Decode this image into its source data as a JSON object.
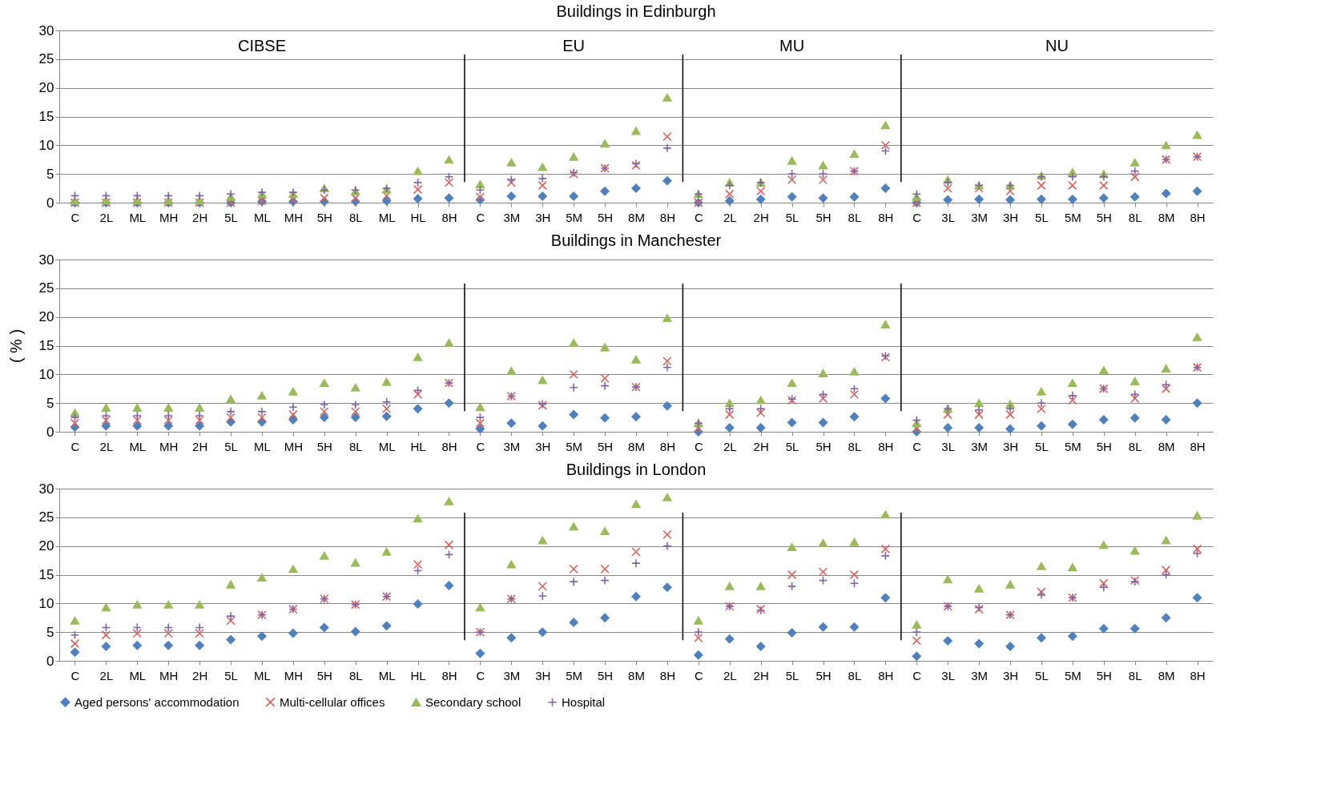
{
  "chart_data": [
    {
      "type": "scatter",
      "title": "Buildings in Edinburgh",
      "categories": [
        "C",
        "2L",
        "ML",
        "MH",
        "2H",
        "5L",
        "ML",
        "MH",
        "5H",
        "8L",
        "ML",
        "HL",
        "8H",
        "C",
        "3M",
        "3H",
        "5M",
        "5H",
        "8M",
        "8H",
        "C",
        "2L",
        "2H",
        "5L",
        "5H",
        "8L",
        "8H",
        "C",
        "3L",
        "3M",
        "3H",
        "5L",
        "5M",
        "5H",
        "8L",
        "8M",
        "8H"
      ],
      "ylim": [
        0,
        30
      ],
      "yticks": [
        0,
        5,
        10,
        15,
        20,
        25,
        30
      ],
      "grid": "y",
      "legend": "bottom",
      "annotations": [
        "CIBSE",
        "EU",
        "MU",
        "NU"
      ],
      "series": [
        {
          "name": "Aged persons' accommodation",
          "color": "#4f81bd",
          "marker": "diamond",
          "values": [
            0,
            0,
            0,
            0,
            0,
            0,
            0.2,
            0.2,
            0.2,
            0.2,
            0.3,
            0.7,
            0.8,
            0.5,
            1.1,
            1.1,
            1.1,
            2,
            2.5,
            3.8,
            0,
            0.3,
            0.6,
            1,
            0.8,
            1,
            2.5,
            0,
            0.5,
            0.6,
            0.5,
            0.6,
            0.6,
            0.8,
            1,
            1.6,
            2
          ]
        },
        {
          "name": "Multi-cellular offices",
          "color": "#d9605c",
          "marker": "cross",
          "values": [
            0,
            0,
            0,
            0,
            0,
            0,
            0.3,
            0.5,
            0.8,
            0.8,
            1.2,
            2.3,
            3.5,
            1,
            3.5,
            3,
            5,
            6,
            6.5,
            11.5,
            0,
            1.5,
            2,
            4,
            4,
            5.5,
            10,
            0,
            2.5,
            2.5,
            2,
            3,
            3,
            3,
            4.5,
            7.5,
            8
          ]
        },
        {
          "name": "Secondary school",
          "color": "#9bbb59",
          "marker": "triangle",
          "values": [
            0.3,
            0.4,
            0.4,
            0.4,
            0.4,
            1,
            1.5,
            1.5,
            2.5,
            2,
            2.3,
            5.5,
            7.5,
            3.2,
            7,
            6.2,
            8,
            10.3,
            12.5,
            18.3,
            1.5,
            3.5,
            3.5,
            7.3,
            6.5,
            8.5,
            13.5,
            1,
            4,
            3,
            3,
            4.7,
            5.3,
            5,
            7,
            10,
            11.8
          ]
        },
        {
          "name": "Hospital",
          "color": "#8064a2",
          "marker": "plus",
          "values": [
            1.2,
            1.2,
            1.2,
            1.2,
            1.2,
            1.5,
            1.8,
            1.8,
            2.2,
            2.2,
            2.5,
            3.5,
            4.5,
            2.2,
            4,
            4.2,
            5.2,
            6,
            6.8,
            9.5,
            1.5,
            3,
            3.5,
            5,
            5,
            5.5,
            9,
            1.5,
            3.5,
            3,
            3,
            4.5,
            4.5,
            4.5,
            5.5,
            7.5,
            8
          ]
        }
      ]
    },
    {
      "type": "scatter",
      "title": "Buildings in Manchester",
      "ylabel": "( % )",
      "categories": [
        "C",
        "2L",
        "ML",
        "MH",
        "2H",
        "5L",
        "ML",
        "MH",
        "5H",
        "8L",
        "ML",
        "HL",
        "8H",
        "C",
        "3M",
        "3H",
        "5M",
        "5H",
        "8M",
        "8H",
        "C",
        "2L",
        "2H",
        "5L",
        "5H",
        "8L",
        "8H",
        "C",
        "3L",
        "3M",
        "3H",
        "5L",
        "5M",
        "5H",
        "8L",
        "8M",
        "8H"
      ],
      "ylim": [
        0,
        30
      ],
      "yticks": [
        0,
        5,
        10,
        15,
        20,
        25,
        30
      ],
      "grid": "y",
      "legend": "bottom",
      "series": [
        {
          "name": "Aged persons' accommodation",
          "color": "#4f81bd",
          "marker": "diamond",
          "values": [
            0.8,
            1,
            1,
            1,
            1,
            1.7,
            1.7,
            2.1,
            2.5,
            2.5,
            2.7,
            4,
            5,
            0.5,
            1.5,
            1,
            3,
            2.4,
            2.6,
            4.5,
            0,
            0.7,
            0.7,
            1.6,
            1.6,
            2.6,
            5.8,
            0,
            0.7,
            0.7,
            0.5,
            1,
            1.3,
            2.1,
            2.4,
            2.1,
            5
          ]
        },
        {
          "name": "Multi-cellular offices",
          "color": "#d9605c",
          "marker": "cross",
          "values": [
            1.5,
            2,
            2,
            2,
            2,
            2.5,
            2.5,
            3,
            3.5,
            3.5,
            4,
            6.5,
            8.5,
            1.5,
            6.2,
            4.6,
            10,
            9.3,
            7.8,
            12.3,
            0.5,
            3,
            3.3,
            5.5,
            5.8,
            6.5,
            13,
            0.5,
            3,
            3,
            3,
            4,
            5.5,
            7.5,
            5.8,
            7.5,
            11.2
          ]
        },
        {
          "name": "Secondary school",
          "color": "#9bbb59",
          "marker": "triangle",
          "values": [
            3.3,
            4.2,
            4.2,
            4.2,
            4.2,
            5.7,
            6.3,
            7,
            8.5,
            7.7,
            8.7,
            13,
            15.5,
            4.3,
            10.6,
            9,
            15.5,
            14.7,
            12.6,
            19.8,
            1.5,
            5,
            5.5,
            8.5,
            10.2,
            10.5,
            18.7,
            1.5,
            4,
            5,
            4.8,
            7,
            8.5,
            10.7,
            8.8,
            11,
            16.5
          ]
        },
        {
          "name": "Hospital",
          "color": "#8064a2",
          "marker": "plus",
          "values": [
            2.5,
            2.8,
            2.8,
            2.8,
            2.8,
            3.5,
            3.5,
            4.3,
            4.7,
            4.7,
            5.2,
            7.2,
            8.5,
            2.5,
            6.2,
            4.8,
            7.7,
            8,
            7.8,
            11.2,
            1.5,
            4,
            4,
            5.7,
            6.5,
            7.5,
            13.2,
            2,
            4,
            3.8,
            4,
            5,
            6.3,
            7.5,
            6.5,
            8.2,
            11.2
          ]
        }
      ]
    },
    {
      "type": "scatter",
      "title": "Buildings in London",
      "categories": [
        "C",
        "2L",
        "ML",
        "MH",
        "2H",
        "5L",
        "ML",
        "MH",
        "5H",
        "8L",
        "ML",
        "HL",
        "8H",
        "C",
        "3M",
        "3H",
        "5M",
        "5H",
        "8M",
        "8H",
        "C",
        "2L",
        "2H",
        "5L",
        "5H",
        "8L",
        "8H",
        "C",
        "3L",
        "3M",
        "3H",
        "5L",
        "5M",
        "5H",
        "8L",
        "8M",
        "8H"
      ],
      "ylim": [
        0,
        30
      ],
      "yticks": [
        0,
        5,
        10,
        15,
        20,
        25,
        30
      ],
      "grid": "y",
      "legend": "bottom",
      "series": [
        {
          "name": "Aged persons' accommodation",
          "color": "#4f81bd",
          "marker": "diamond",
          "values": [
            1.5,
            2.5,
            2.7,
            2.7,
            2.7,
            3.7,
            4.3,
            4.8,
            5.8,
            5.1,
            6.1,
            9.9,
            13.1,
            1.3,
            4,
            5,
            6.7,
            7.5,
            11.2,
            12.8,
            1,
            3.8,
            2.5,
            4.9,
            5.9,
            5.9,
            11,
            0.8,
            3.5,
            3,
            2.5,
            4,
            4.3,
            5.6,
            5.6,
            7.5,
            11
          ]
        },
        {
          "name": "Multi-cellular offices",
          "color": "#d9605c",
          "marker": "cross",
          "values": [
            3,
            4.5,
            4.8,
            4.8,
            4.8,
            7,
            8,
            9,
            10.8,
            9.8,
            11.2,
            16.8,
            20.2,
            5,
            10.8,
            13,
            16,
            16,
            19,
            22,
            4,
            9.5,
            9,
            15,
            15.5,
            15,
            19.5,
            3.5,
            9.5,
            9,
            8,
            12,
            11,
            13.5,
            14,
            15.8,
            19.5
          ]
        },
        {
          "name": "Secondary school",
          "color": "#9bbb59",
          "marker": "triangle",
          "values": [
            7,
            9.3,
            9.8,
            9.8,
            9.8,
            13.3,
            14.5,
            16,
            18.3,
            17.1,
            19,
            24.8,
            27.8,
            9.3,
            16.8,
            21,
            23.4,
            22.6,
            27.3,
            28.5,
            7,
            13,
            13,
            19.8,
            20.5,
            20.7,
            25.5,
            6.3,
            14.2,
            12.6,
            13.3,
            16.5,
            16.3,
            20.2,
            19.2,
            21,
            25.3
          ]
        },
        {
          "name": "Hospital",
          "color": "#8064a2",
          "marker": "plus",
          "values": [
            4.5,
            5.8,
            5.8,
            5.8,
            5.8,
            7.8,
            8,
            9,
            10.8,
            9.8,
            11.2,
            15.7,
            18.5,
            5,
            10.8,
            11.3,
            13.8,
            14,
            17,
            20,
            5,
            9.5,
            8.8,
            13,
            14,
            13.5,
            18.3,
            5,
            9.5,
            9.3,
            8,
            11.5,
            11,
            12.8,
            13.8,
            15,
            18.7
          ]
        }
      ]
    }
  ]
}
